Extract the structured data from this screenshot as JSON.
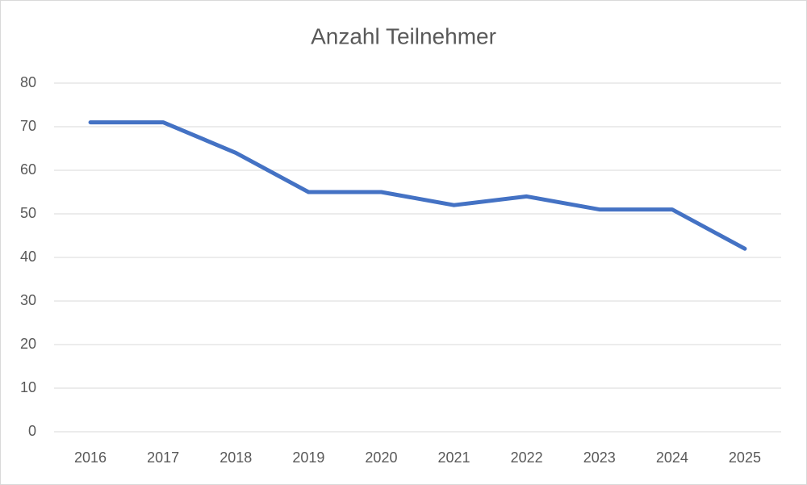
{
  "chart_data": {
    "type": "line",
    "title": "Anzahl Teilnehmer",
    "categories": [
      "2016",
      "2017",
      "2018",
      "2019",
      "2020",
      "2021",
      "2022",
      "2023",
      "2024",
      "2025"
    ],
    "values": [
      71,
      71,
      64,
      55,
      55,
      52,
      54,
      51,
      51,
      42
    ],
    "color": "#4472c4",
    "ylim": [
      0,
      80
    ],
    "yticks": [
      0,
      10,
      20,
      30,
      40,
      50,
      60,
      70,
      80
    ],
    "grid": true
  }
}
